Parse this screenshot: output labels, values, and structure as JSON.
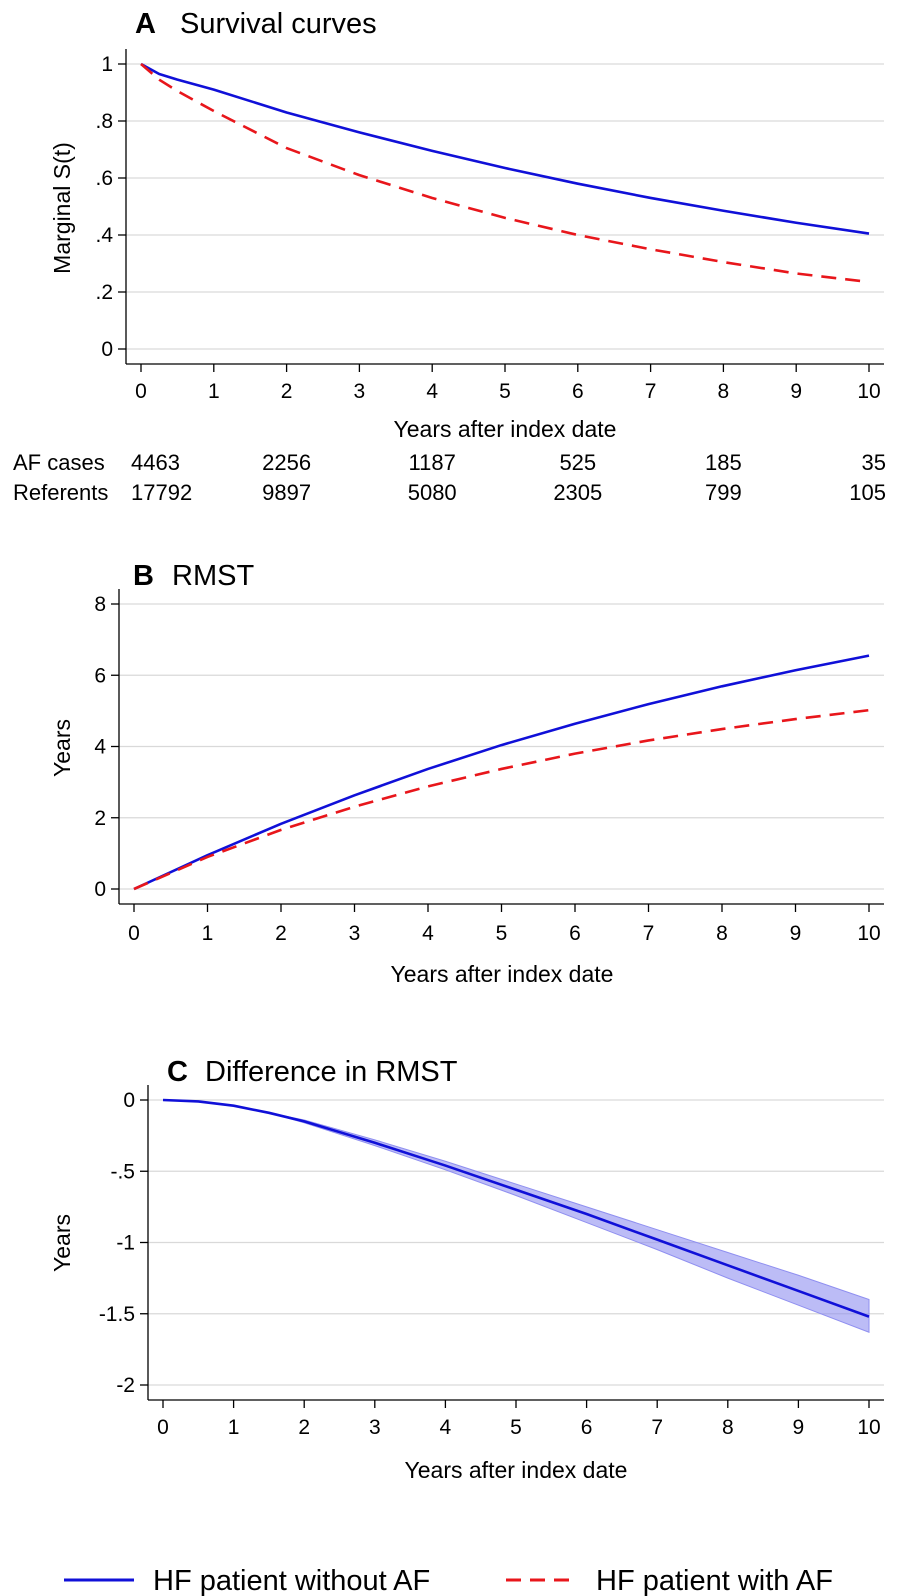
{
  "chart_data": [
    {
      "panel": "A",
      "title": "Survival curves",
      "type": "line",
      "xlabel": "Years after index date",
      "ylabel": "Marginal S(t)",
      "xlim": [
        0,
        10
      ],
      "ylim": [
        0,
        1
      ],
      "xticks": [
        "0",
        "1",
        "2",
        "3",
        "4",
        "5",
        "6",
        "7",
        "8",
        "9",
        "10"
      ],
      "yticks": [
        {
          "value": 0,
          "label": "0"
        },
        {
          "value": 0.2,
          "label": ".2"
        },
        {
          "value": 0.4,
          "label": ".4"
        },
        {
          "value": 0.6,
          "label": ".6"
        },
        {
          "value": 0.8,
          "label": ".8"
        },
        {
          "value": 1,
          "label": "1"
        }
      ],
      "grid": true,
      "x": [
        0,
        0.25,
        0.5,
        1,
        2,
        3,
        4,
        5,
        6,
        7,
        8,
        9,
        10
      ],
      "series": [
        {
          "name": "HF patient without AF",
          "color": "#1010d8",
          "dash": "solid",
          "values": [
            1.0,
            0.965,
            0.945,
            0.91,
            0.83,
            0.76,
            0.695,
            0.635,
            0.58,
            0.53,
            0.485,
            0.443,
            0.405
          ]
        },
        {
          "name": "HF patient with AF",
          "color": "#e8161b",
          "dash": "dashed",
          "values": [
            1.0,
            0.945,
            0.905,
            0.835,
            0.705,
            0.61,
            0.53,
            0.46,
            0.4,
            0.35,
            0.305,
            0.265,
            0.235
          ]
        }
      ],
      "risk_table": {
        "rows": [
          {
            "label": "AF cases",
            "values": [
              "4463",
              "2256",
              "1187",
              "525",
              "185",
              "35"
            ]
          },
          {
            "label": "Referents",
            "values": [
              "17792",
              "9897",
              "5080",
              "2305",
              "799",
              "105"
            ]
          }
        ],
        "at_years": [
          0,
          2,
          4,
          6,
          8,
          10
        ]
      }
    },
    {
      "panel": "B",
      "title": "RMST",
      "type": "line",
      "xlabel": "Years after index date",
      "ylabel": "Years",
      "xlim": [
        0,
        10
      ],
      "ylim": [
        0,
        8
      ],
      "xticks": [
        "0",
        "1",
        "2",
        "3",
        "4",
        "5",
        "6",
        "7",
        "8",
        "9",
        "10"
      ],
      "yticks": [
        {
          "value": 0,
          "label": "0"
        },
        {
          "value": 2,
          "label": "2"
        },
        {
          "value": 4,
          "label": "4"
        },
        {
          "value": 6,
          "label": "6"
        },
        {
          "value": 8,
          "label": "8"
        }
      ],
      "grid": true,
      "x": [
        0,
        1,
        2,
        3,
        4,
        5,
        6,
        7,
        8,
        9,
        10
      ],
      "series": [
        {
          "name": "HF patient without AF",
          "color": "#1010d8",
          "dash": "solid",
          "values": [
            0,
            0.95,
            1.83,
            2.63,
            3.37,
            4.04,
            4.64,
            5.19,
            5.69,
            6.14,
            6.55
          ]
        },
        {
          "name": "HF patient with AF",
          "color": "#e8161b",
          "dash": "dashed",
          "values": [
            0,
            0.9,
            1.66,
            2.31,
            2.88,
            3.37,
            3.8,
            4.17,
            4.49,
            4.77,
            5.02
          ]
        }
      ]
    },
    {
      "panel": "C",
      "title": "Difference in RMST",
      "type": "line",
      "xlabel": "Years after index date",
      "ylabel": "Years",
      "xlim": [
        0,
        10
      ],
      "ylim": [
        -2,
        0
      ],
      "xticks": [
        "0",
        "1",
        "2",
        "3",
        "4",
        "5",
        "6",
        "7",
        "8",
        "9",
        "10"
      ],
      "yticks": [
        {
          "value": -2,
          "label": "-2"
        },
        {
          "value": -1.5,
          "label": "-1.5"
        },
        {
          "value": -1,
          "label": "-1"
        },
        {
          "value": -0.5,
          "label": "-.5"
        },
        {
          "value": 0,
          "label": "0"
        }
      ],
      "grid": true,
      "x": [
        0,
        0.5,
        1,
        1.5,
        2,
        3,
        4,
        5,
        6,
        7,
        8,
        9,
        10
      ],
      "series": [
        {
          "name": "HF patient without AF",
          "color": "#1010d8",
          "dash": "solid",
          "values": [
            0,
            -0.01,
            -0.04,
            -0.09,
            -0.15,
            -0.3,
            -0.46,
            -0.63,
            -0.8,
            -0.98,
            -1.16,
            -1.34,
            -1.52
          ]
        }
      ],
      "ci_band": {
        "color": "#8f8ff0",
        "lower": [
          0,
          -0.01,
          -0.04,
          -0.09,
          -0.16,
          -0.32,
          -0.49,
          -0.67,
          -0.86,
          -1.05,
          -1.25,
          -1.44,
          -1.63
        ],
        "upper": [
          0,
          -0.01,
          -0.04,
          -0.09,
          -0.14,
          -0.28,
          -0.43,
          -0.59,
          -0.75,
          -0.91,
          -1.07,
          -1.23,
          -1.4
        ]
      }
    }
  ],
  "legend": {
    "placement": "bottom",
    "items": [
      {
        "label": "HF patient without AF",
        "color": "#1010d8",
        "dash": "solid"
      },
      {
        "label": "HF patient with AF",
        "color": "#e8161b",
        "dash": "dashed"
      }
    ]
  }
}
